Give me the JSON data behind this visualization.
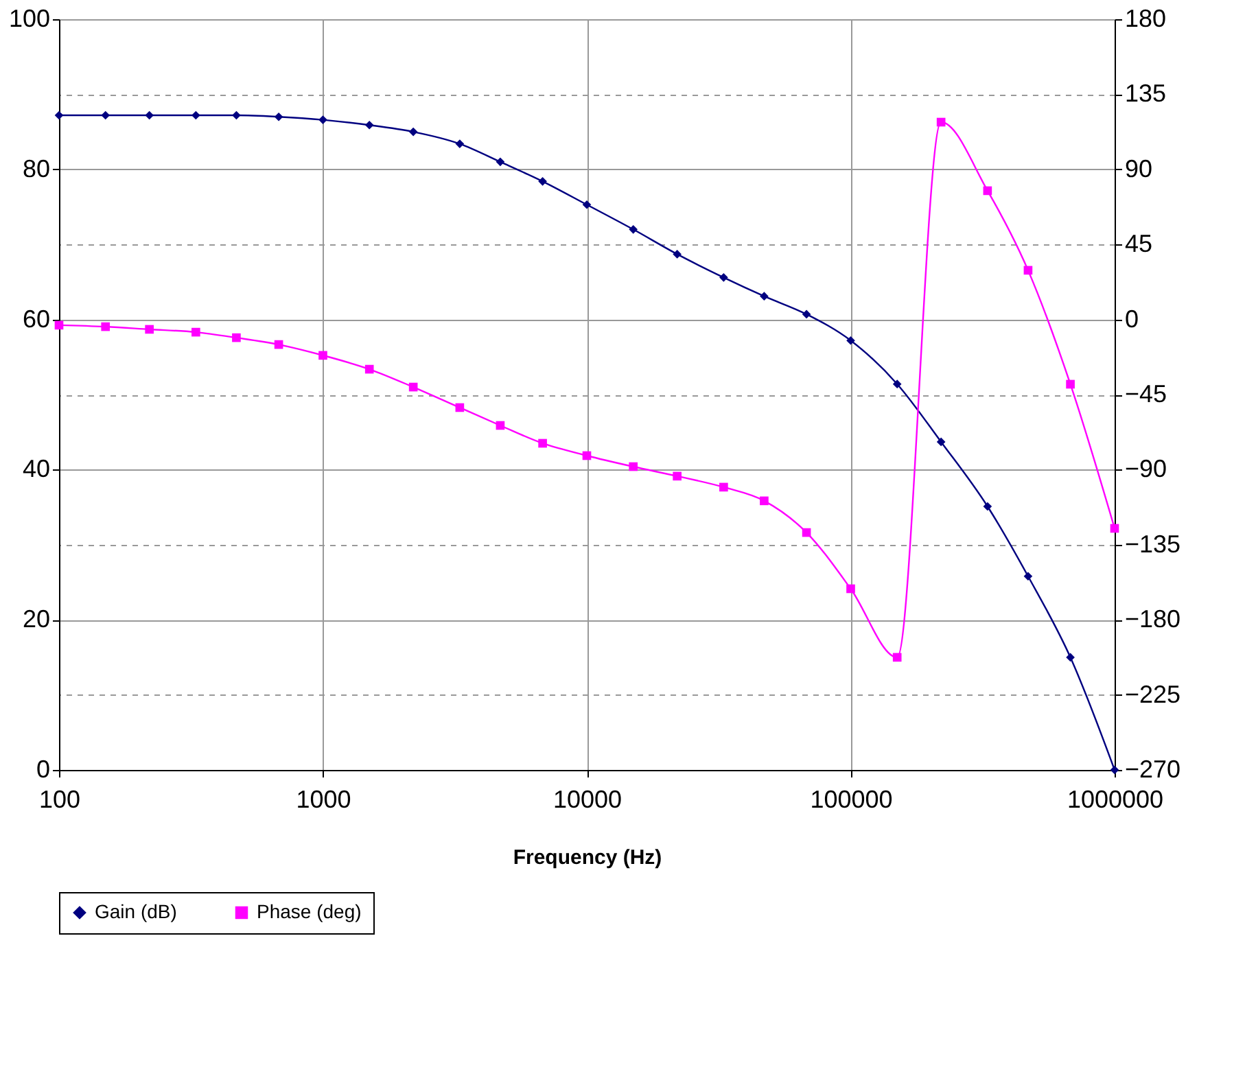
{
  "chart_data": {
    "type": "line",
    "xlabel": "Frequency (Hz)",
    "log": "x",
    "grid": true,
    "legend": "bottom",
    "line_style": "solid",
    "x": [
      100,
      150,
      220,
      330,
      470,
      680,
      1000,
      1500,
      2200,
      3300,
      4700,
      6800,
      10000,
      15000,
      22000,
      33000,
      47000,
      68000,
      100000,
      150000,
      220000,
      330000,
      470000,
      680000,
      1000000
    ],
    "xlim": [
      100,
      1000000
    ],
    "xticks": [
      100,
      1000,
      10000,
      100000,
      1000000
    ],
    "ylim": [
      0,
      100
    ],
    "yticks": [
      0,
      20,
      40,
      60,
      80,
      100
    ],
    "y2lim": [
      -270,
      180
    ],
    "y2ticks": [
      -270,
      -225,
      -180,
      -135,
      -90,
      -45,
      0,
      45,
      90,
      135,
      180
    ],
    "series": [
      {
        "name": "Gain (dB)",
        "color": "#000080",
        "marker": "diamond",
        "values": [
          87.2,
          87.2,
          87.2,
          87.2,
          87.2,
          87.0,
          86.6,
          85.9,
          85.0,
          83.4,
          81.0,
          78.4,
          75.3,
          72.0,
          68.7,
          65.6,
          63.1,
          60.7,
          57.2,
          51.4,
          43.7,
          35.1,
          25.8,
          15.0,
          0
        ]
      },
      {
        "name": "Phase (deg)",
        "color": "#ff00ff",
        "marker": "square",
        "axis": "y2",
        "values": [
          -3.4,
          -4.3,
          -5.9,
          -7.6,
          -10.9,
          -15,
          -21.5,
          -29.8,
          -40.5,
          -52.8,
          -63.5,
          -74.2,
          -81.6,
          -88.2,
          -93.9,
          -100.5,
          -108.7,
          -127.7,
          -161.4,
          -202.5,
          118.3,
          77.2,
          29.5,
          -38.8,
          -125.2
        ]
      }
    ]
  }
}
